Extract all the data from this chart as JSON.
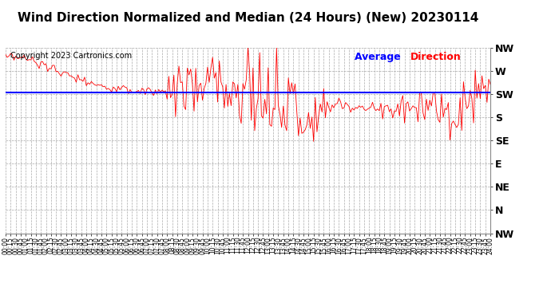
{
  "title": "Wind Direction Normalized and Median (24 Hours) (New) 20230114",
  "copyright": "Copyright 2023 Cartronics.com",
  "legend_label_avg": "Average",
  "legend_label_dir": "Direction",
  "legend_color_avg": "blue",
  "legend_color_dir": "red",
  "line_color": "red",
  "avg_line_color": "blue",
  "avg_direction_value": 228,
  "background_color": "#ffffff",
  "plot_bg_color": "#ffffff",
  "grid_color": "#aaaaaa",
  "ytick_labels": [
    "NW",
    "W",
    "SW",
    "S",
    "SE",
    "E",
    "NE",
    "N",
    "NW"
  ],
  "ytick_values": [
    315,
    270,
    225,
    180,
    135,
    90,
    45,
    0,
    -45
  ],
  "ymin": -45,
  "ymax": 315,
  "title_fontsize": 11,
  "copyright_fontsize": 7,
  "axis_label_fontsize": 9
}
